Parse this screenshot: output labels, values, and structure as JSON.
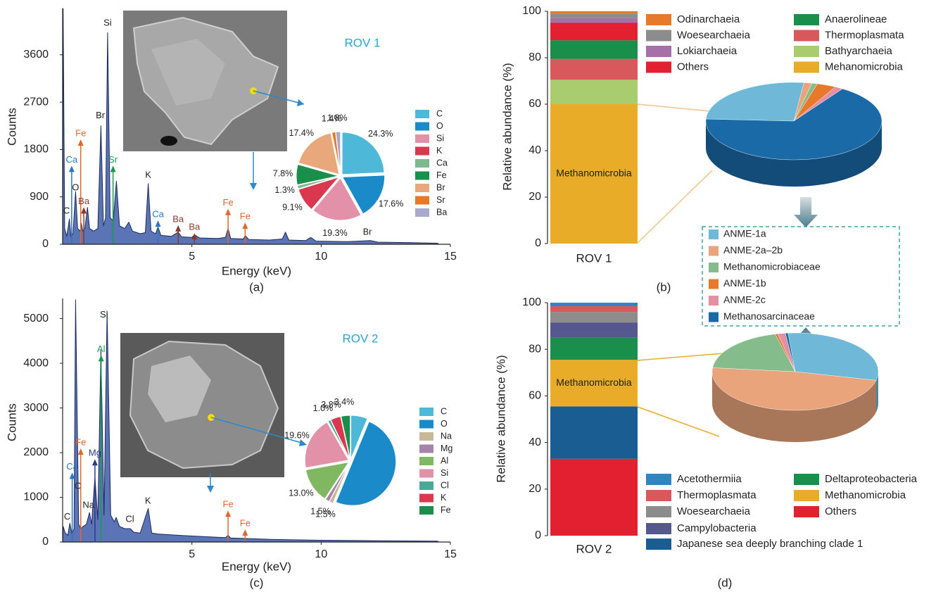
{
  "chart_data": [
    {
      "type": "spectrum",
      "panel_label": "(a)",
      "xlabel": "Energy (keV)",
      "ylabel": "Counts",
      "xlim": [
        0,
        15
      ],
      "ylim": [
        0,
        4480
      ],
      "xticks": [
        5,
        10,
        15
      ],
      "yticks": [
        0,
        900,
        1800,
        2700,
        3600
      ],
      "color": "#5b74b5",
      "x": [
        0,
        0.02,
        0.08,
        0.16,
        0.26,
        0.32,
        0.4,
        0.5,
        0.58,
        0.68,
        0.72,
        0.78,
        0.86,
        0.96,
        1.04,
        1.2,
        1.36,
        1.48,
        1.58,
        1.66,
        1.74,
        1.84,
        1.96,
        2.08,
        2.2,
        2.4,
        2.56,
        2.7,
        3.0,
        3.2,
        3.31,
        3.42,
        3.6,
        3.69,
        3.8,
        4.2,
        4.47,
        4.6,
        5.0,
        5.1,
        5.3,
        6.0,
        6.3,
        6.4,
        6.5,
        7.0,
        7.06,
        7.2,
        8.0,
        8.5,
        8.62,
        8.75,
        9.4,
        9.6,
        9.8,
        11.0,
        11.9,
        12.2,
        13.5,
        14.5,
        14.55
      ],
      "values": [
        0,
        4480,
        300,
        150,
        480,
        150,
        200,
        1000,
        300,
        250,
        400,
        250,
        300,
        700,
        300,
        250,
        300,
        2250,
        350,
        500,
        4020,
        500,
        450,
        1200,
        350,
        300,
        420,
        250,
        200,
        220,
        1150,
        250,
        200,
        330,
        170,
        150,
        230,
        140,
        130,
        180,
        120,
        110,
        130,
        300,
        110,
        100,
        170,
        90,
        80,
        100,
        230,
        80,
        70,
        130,
        60,
        50,
        70,
        40,
        30,
        20,
        0
      ],
      "annotations": [
        {
          "label": "C",
          "x": 0.15,
          "y": 630,
          "color": "#222222",
          "arrow": false
        },
        {
          "label": "Ca",
          "x": 0.35,
          "y": 1600,
          "color": "#2a78c0",
          "arrow": true
        },
        {
          "label": "O",
          "x": 0.5,
          "y": 1070,
          "color": "#222222",
          "arrow": false
        },
        {
          "label": "Fe",
          "x": 0.7,
          "y": 2100,
          "color": "#e0662a",
          "arrow": true
        },
        {
          "label": "Ba",
          "x": 0.82,
          "y": 810,
          "color": "#8b3a2a",
          "arrow": true
        },
        {
          "label": "Br",
          "x": 1.46,
          "y": 2440,
          "color": "#222222",
          "arrow": false
        },
        {
          "label": "Si",
          "x": 1.74,
          "y": 4200,
          "color": "#222222",
          "arrow": false
        },
        {
          "label": "Sr",
          "x": 1.95,
          "y": 1600,
          "color": "#1a9a50",
          "arrow": true
        },
        {
          "label": "K",
          "x": 3.31,
          "y": 1310,
          "color": "#222222",
          "arrow": false
        },
        {
          "label": "Ca",
          "x": 3.69,
          "y": 560,
          "color": "#2a78c0",
          "arrow": true
        },
        {
          "label": "Ba",
          "x": 4.47,
          "y": 470,
          "color": "#8b3a2a",
          "arrow": true
        },
        {
          "label": "Ba",
          "x": 5.1,
          "y": 320,
          "color": "#8b3a2a",
          "arrow": true
        },
        {
          "label": "Fe",
          "x": 6.4,
          "y": 780,
          "color": "#e0662a",
          "arrow": true
        },
        {
          "label": "Fe",
          "x": 7.06,
          "y": 520,
          "color": "#e0662a",
          "arrow": true
        }
      ]
    },
    {
      "type": "pie",
      "title": "ROV 1",
      "note": "Br",
      "categories": [
        "C",
        "O",
        "Si",
        "K",
        "Ca",
        "Fe",
        "Br",
        "Sr",
        "Ba"
      ],
      "values": [
        24.3,
        17.6,
        19.3,
        9.1,
        1.3,
        7.8,
        17.4,
        1.4,
        1.8
      ],
      "value_labels": [
        "24.3%",
        "17.6%",
        "19.3%",
        "9.1%",
        "1.3%",
        "7.8%",
        "17.4%",
        "1.4%",
        "1.8%"
      ],
      "colors": [
        "#4db8d8",
        "#1a8ac8",
        "#e291a8",
        "#d9384f",
        "#7fb88f",
        "#1a8f4b",
        "#e8a87c",
        "#e8782a",
        "#a9a9cf"
      ]
    },
    {
      "type": "stacked_bar",
      "panel_label": "(b)",
      "ylabel": "Relative abundance (%)",
      "categories": [
        "ROV 1"
      ],
      "ylim": [
        0,
        100
      ],
      "yticks": [
        0,
        20,
        40,
        60,
        80,
        100
      ],
      "series": [
        {
          "name": "Mehanomicrobia",
          "label": "Methanomicrobia",
          "color": "#e9ac28",
          "values": [
            60
          ]
        },
        {
          "name": "Bathyarchaeia",
          "color": "#a9cd6e",
          "values": [
            10.5
          ]
        },
        {
          "name": "Thermoplasmata",
          "color": "#d9585c",
          "values": [
            9
          ]
        },
        {
          "name": "Anaerolineae",
          "color": "#1a8f4b",
          "values": [
            8
          ]
        },
        {
          "name": "Others",
          "color": "#e32030",
          "values": [
            7.5
          ]
        },
        {
          "name": "Lokiarchaeia",
          "color": "#a671a8",
          "values": [
            2
          ]
        },
        {
          "name": "Woesearchaeia",
          "color": "#8c8c8c",
          "values": [
            2
          ]
        },
        {
          "name": "Odinarchaeia",
          "color": "#e8782a",
          "values": [
            1
          ]
        }
      ]
    },
    {
      "type": "pie3d",
      "categories": [
        "ANME-1a",
        "ANME-2a–2b",
        "Methanomicrobiaceae",
        "ANME-1b",
        "ANME-2c",
        "Methanosarcinaceae"
      ],
      "colors": [
        "#6fb8d8",
        "#e9a47b",
        "#84bc8c",
        "#e8782a",
        "#e390a3",
        "#1a6aa8"
      ],
      "pies": [
        {
          "values": [
            26,
            1.5,
            1,
            3.5,
            1.5,
            66.5
          ]
        },
        {
          "values": [
            30,
            48,
            19.5,
            0.5,
            1.5,
            0.5
          ]
        }
      ]
    },
    {
      "type": "spectrum",
      "panel_label": "(c)",
      "xlabel": "Energy (keV)",
      "ylabel": "Counts",
      "xlim": [
        0,
        15
      ],
      "ylim": [
        0,
        5450
      ],
      "xticks": [
        5,
        10,
        15
      ],
      "yticks": [
        0,
        1000,
        2000,
        3000,
        4000,
        5000
      ],
      "color": "#5b74b5",
      "x": [
        0,
        0.02,
        0.1,
        0.2,
        0.28,
        0.36,
        0.44,
        0.5,
        0.62,
        0.7,
        0.8,
        0.92,
        1.04,
        1.12,
        1.25,
        1.36,
        1.48,
        1.6,
        1.72,
        1.86,
        2.0,
        2.07,
        2.2,
        2.4,
        2.62,
        2.75,
        3.0,
        3.31,
        3.45,
        3.7,
        4.5,
        5.5,
        6.3,
        6.4,
        6.5,
        7.0,
        8.0,
        10.0,
        12.0,
        14.5,
        14.55
      ],
      "values": [
        0,
        350,
        200,
        150,
        420,
        180,
        300,
        5420,
        400,
        300,
        350,
        400,
        660,
        400,
        1450,
        500,
        4300,
        600,
        5150,
        600,
        450,
        550,
        350,
        300,
        300,
        220,
        200,
        750,
        200,
        180,
        150,
        120,
        100,
        150,
        90,
        80,
        60,
        40,
        30,
        20,
        0
      ],
      "annotations": [
        {
          "label": "C",
          "x": 0.18,
          "y": 560,
          "color": "#222222",
          "arrow": false
        },
        {
          "label": "Ca",
          "x": 0.37,
          "y": 1680,
          "color": "#2a78c0",
          "arrow": true
        },
        {
          "label": "O",
          "x": 0.6,
          "y": 1240,
          "color": "#222222",
          "arrow": false
        },
        {
          "label": "Fe",
          "x": 0.7,
          "y": 2220,
          "color": "#e0662a",
          "arrow": true
        },
        {
          "label": "Na",
          "x": 1.0,
          "y": 820,
          "color": "#222222",
          "arrow": false
        },
        {
          "label": "Mg",
          "x": 1.25,
          "y": 1980,
          "color": "#2c3a8a",
          "arrow": true
        },
        {
          "label": "Al",
          "x": 1.49,
          "y": 4310,
          "color": "#1a9a50",
          "arrow": true
        },
        {
          "label": "Si",
          "x": 1.6,
          "y": 5080,
          "color": "#222222",
          "arrow": false
        },
        {
          "label": "Cl",
          "x": 2.6,
          "y": 500,
          "color": "#222222",
          "arrow": false
        },
        {
          "label": "K",
          "x": 3.3,
          "y": 910,
          "color": "#222222",
          "arrow": false
        },
        {
          "label": "Fe",
          "x": 6.4,
          "y": 830,
          "color": "#e0662a",
          "arrow": true
        },
        {
          "label": "Fe",
          "x": 7.06,
          "y": 410,
          "color": "#e0662a",
          "arrow": true
        }
      ]
    },
    {
      "type": "pie",
      "title": "ROV 2",
      "categories": [
        "C",
        "O",
        "Na",
        "Mg",
        "Al",
        "Si",
        "Cl",
        "K",
        "Fe"
      ],
      "values": [
        6.2,
        50.0,
        1.5,
        1.5,
        13.0,
        19.6,
        1.0,
        3.8,
        3.4
      ],
      "value_labels": [
        null,
        null,
        "1.5%",
        "1.5%",
        "13.0%",
        "19.6%",
        "1.0%",
        "3.8%",
        "3.4%"
      ],
      "colors": [
        "#4db8d8",
        "#1a8ac8",
        "#c8b898",
        "#a683a8",
        "#7fb860",
        "#e291a8",
        "#4aa898",
        "#d9384f",
        "#1a8f4b"
      ]
    },
    {
      "type": "stacked_bar",
      "panel_label": "(d)",
      "ylabel": "Relative abundance (%)",
      "categories": [
        "ROV 2"
      ],
      "ylim": [
        0,
        100
      ],
      "yticks": [
        0,
        20,
        40,
        60,
        80,
        100
      ],
      "series": [
        {
          "name": "Others",
          "color": "#e32030",
          "values": [
            33
          ]
        },
        {
          "name": "Japanese sea deeply branching clade 1",
          "color": "#1a5d93",
          "values": [
            22.5
          ]
        },
        {
          "name": "Methanomicrobia",
          "label": "Methanomicrobia",
          "color": "#e9ac28",
          "values": [
            20
          ]
        },
        {
          "name": "Deltaproteobacteria",
          "color": "#1a8f4b",
          "values": [
            9.5
          ]
        },
        {
          "name": "Campylobacteria",
          "color": "#54588f",
          "values": [
            6.5
          ]
        },
        {
          "name": "Woesearchaeia",
          "color": "#8c8c8c",
          "values": [
            4.5
          ]
        },
        {
          "name": "Thermoplasmata",
          "color": "#d9585c",
          "values": [
            2.5
          ]
        },
        {
          "name": "Acetothermiia",
          "color": "#2e85c0",
          "values": [
            1.5
          ]
        }
      ]
    }
  ]
}
